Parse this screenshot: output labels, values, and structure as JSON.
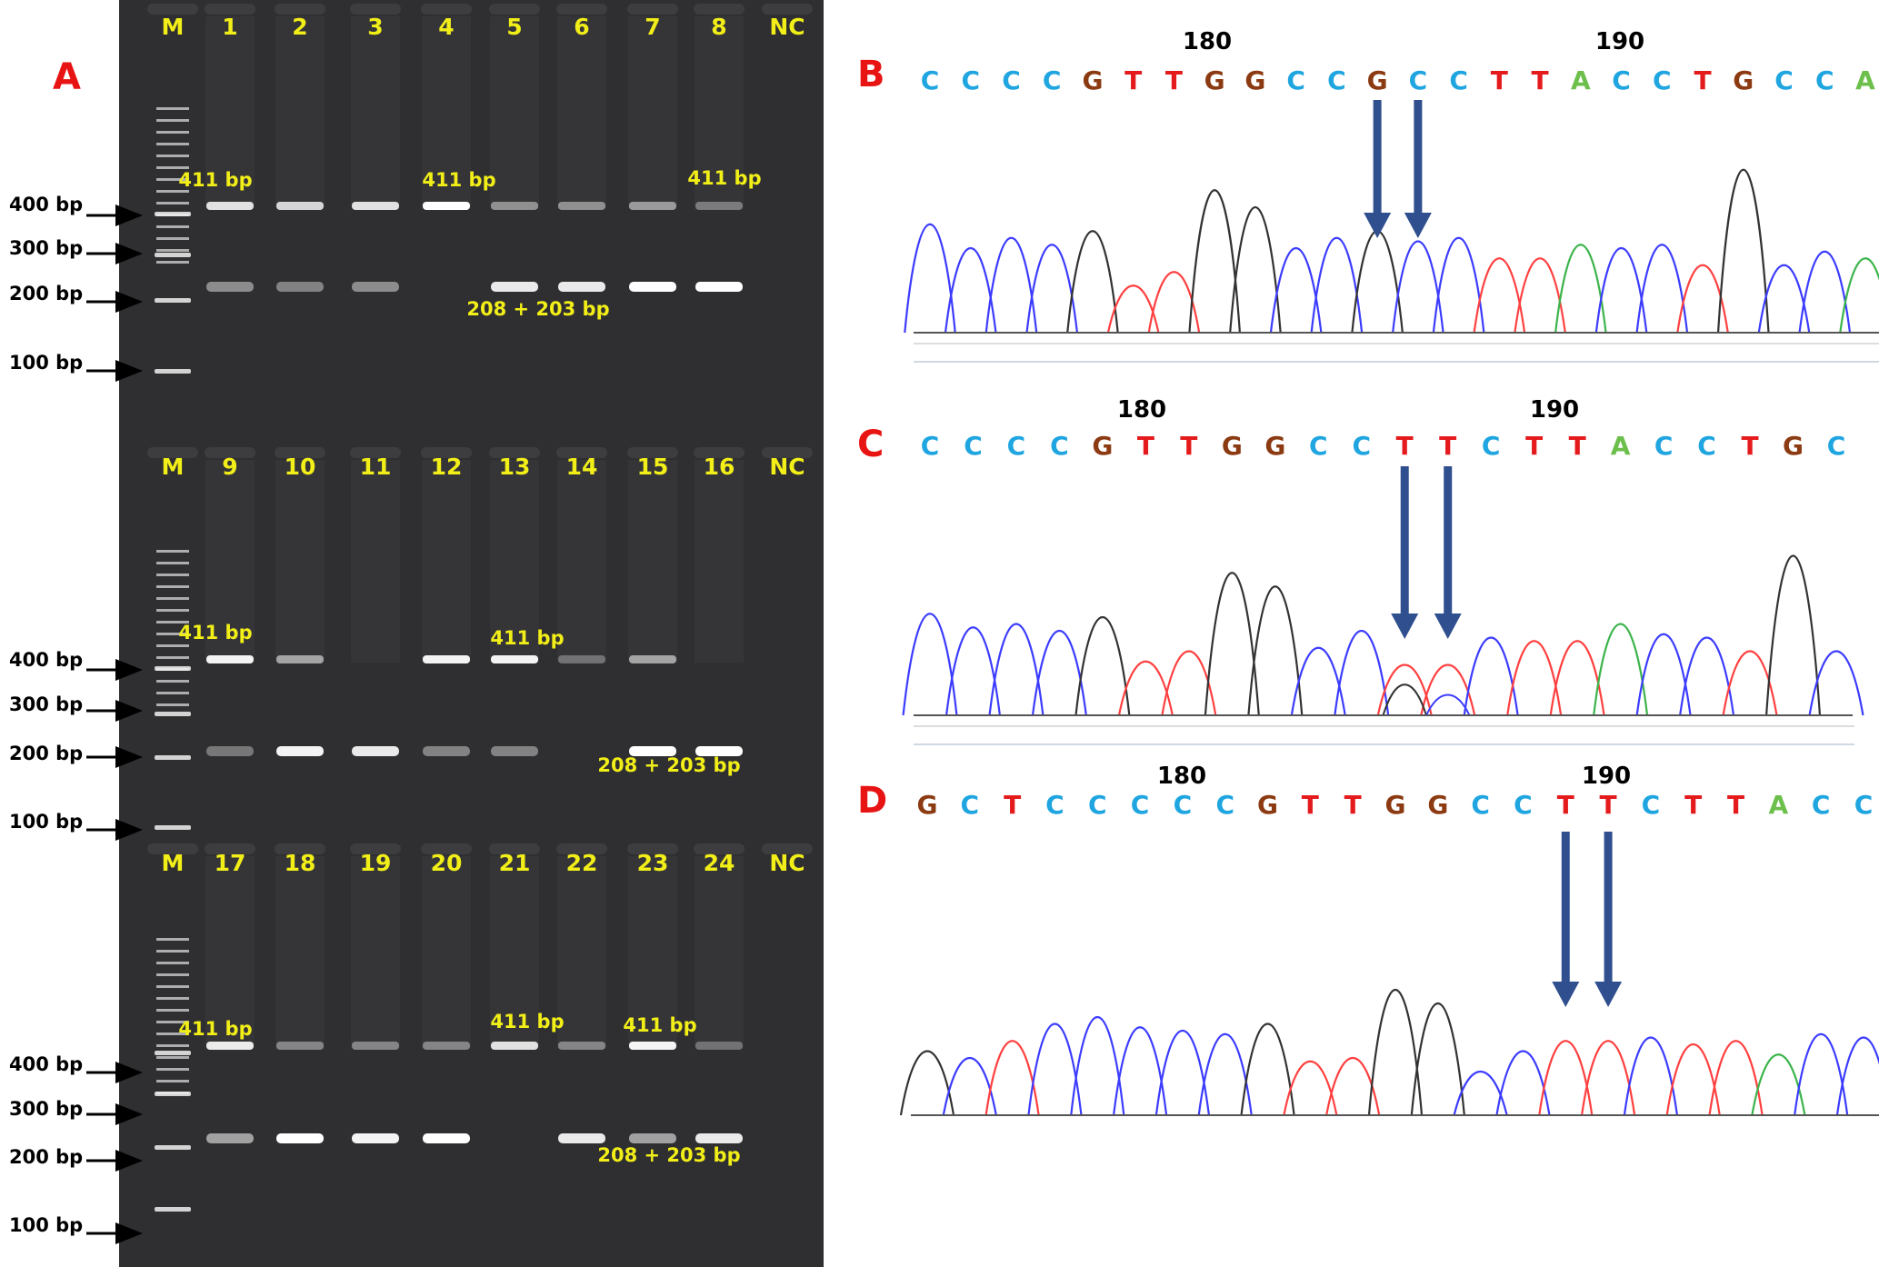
{
  "colors": {
    "panel_letter": "#e81313",
    "gel_label": "#f2ee18",
    "gel_bg": "#2f2f31",
    "arrow": "#2f4f8f",
    "base_A": "#6cbf4b",
    "base_C": "#1fa5e0",
    "base_G": "#8b3a12",
    "base_T": "#e41a1c",
    "trace_A": "#3cb44b",
    "trace_C": "#3c3cff",
    "trace_G": "#333333",
    "trace_T": "#ff4040"
  },
  "panelA": {
    "letter": "A",
    "marker_labels": [
      "400 bp",
      "300 bp",
      "200 bp",
      "100 bp"
    ],
    "rows": [
      {
        "lanes": [
          "M",
          "1",
          "2",
          "3",
          "4",
          "5",
          "6",
          "7",
          "8",
          "NC"
        ],
        "annotations": [
          "411 bp",
          "411 bp",
          "411 bp",
          "208 + 203 bp"
        ]
      },
      {
        "lanes": [
          "M",
          "9",
          "10",
          "11",
          "12",
          "13",
          "14",
          "15",
          "16",
          "NC"
        ],
        "annotations": [
          "411 bp",
          "411 bp",
          "208 + 203 bp"
        ]
      },
      {
        "lanes": [
          "M",
          "17",
          "18",
          "19",
          "20",
          "21",
          "22",
          "23",
          "24",
          "NC"
        ],
        "annotations": [
          "411 bp",
          "411 bp",
          "411 bp",
          "208 + 203 bp"
        ]
      }
    ]
  },
  "panelB": {
    "letter": "B",
    "pos_labels": [
      "180",
      "190"
    ],
    "sequence": [
      "C",
      "C",
      "C",
      "C",
      "G",
      "T",
      "T",
      "G",
      "G",
      "C",
      "C",
      "G",
      "C",
      "C",
      "T",
      "T",
      "A",
      "C",
      "C",
      "T",
      "G",
      "C",
      "C",
      "A"
    ]
  },
  "panelC": {
    "letter": "C",
    "pos_labels": [
      "180",
      "190"
    ],
    "sequence": [
      "C",
      "C",
      "C",
      "C",
      "G",
      "T",
      "T",
      "G",
      "G",
      "C",
      "C",
      "T",
      "T",
      "C",
      "T",
      "T",
      "A",
      "C",
      "C",
      "T",
      "G",
      "C"
    ]
  },
  "panelD": {
    "letter": "D",
    "pos_labels": [
      "180",
      "190"
    ],
    "sequence": [
      "G",
      "C",
      "T",
      "C",
      "C",
      "C",
      "C",
      "C",
      "G",
      "T",
      "T",
      "G",
      "G",
      "C",
      "C",
      "T",
      "T",
      "C",
      "T",
      "T",
      "A",
      "C",
      "C"
    ]
  }
}
